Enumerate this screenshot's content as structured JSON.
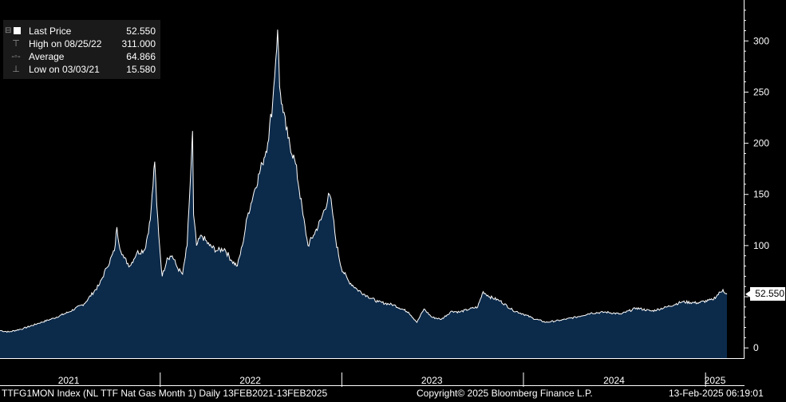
{
  "legend": {
    "last_price_label": "Last Price",
    "last_price_value": "52.550",
    "high_label": "High on 08/25/22",
    "high_value": "311.000",
    "average_label": "Average",
    "average_value": "64.866",
    "low_label": "Low on 03/03/21",
    "low_value": "15.580"
  },
  "last_value_tag": "52.550",
  "footer": {
    "ticker": "TTFG1MON Index (NL TTF Nat Gas Month 1)  Daily 13FEB2021-13FEB2025",
    "copyright": "Copyright© 2025 Bloomberg Finance L.P.",
    "timestamp": "13-Feb-2025 06:19:01"
  },
  "colors": {
    "background": "#000000",
    "area_fill": "#0c2a4a",
    "line": "#ffffff"
  },
  "chart_data": {
    "type": "area",
    "title": "",
    "xlabel": "",
    "ylabel": "",
    "ylim": [
      -10,
      340
    ],
    "xlim": [
      "2021-02-13",
      "2025-02-13"
    ],
    "yticks": [
      0,
      50,
      100,
      150,
      200,
      250,
      300
    ],
    "xticks": [
      {
        "label": "2021",
        "date": "2021-07-01"
      },
      {
        "label": "2022",
        "date": "2022-07-01"
      },
      {
        "label": "2023",
        "date": "2023-07-01"
      },
      {
        "label": "2024",
        "date": "2024-07-01"
      },
      {
        "label": "2025",
        "date": "2025-01-20"
      }
    ],
    "year_separators": [
      "2022-01-01",
      "2023-01-01",
      "2024-01-01",
      "2025-01-01"
    ],
    "grid": false,
    "series": [
      {
        "name": "Last Price",
        "points": [
          [
            "2021-02-13",
            17
          ],
          [
            "2021-03-03",
            15.6
          ],
          [
            "2021-04-01",
            19
          ],
          [
            "2021-05-01",
            24
          ],
          [
            "2021-06-01",
            29
          ],
          [
            "2021-07-01",
            35
          ],
          [
            "2021-08-01",
            43
          ],
          [
            "2021-09-01",
            62
          ],
          [
            "2021-09-15",
            78
          ],
          [
            "2021-10-01",
            95
          ],
          [
            "2021-10-06",
            118
          ],
          [
            "2021-10-10",
            102
          ],
          [
            "2021-10-20",
            88
          ],
          [
            "2021-11-01",
            80
          ],
          [
            "2021-11-15",
            93
          ],
          [
            "2021-12-01",
            96
          ],
          [
            "2021-12-12",
            125
          ],
          [
            "2021-12-21",
            182
          ],
          [
            "2021-12-25",
            140
          ],
          [
            "2021-12-31",
            98
          ],
          [
            "2022-01-05",
            70
          ],
          [
            "2022-01-15",
            88
          ],
          [
            "2022-01-25",
            90
          ],
          [
            "2022-02-05",
            78
          ],
          [
            "2022-02-15",
            72
          ],
          [
            "2022-02-24",
            100
          ],
          [
            "2022-03-04",
            178
          ],
          [
            "2022-03-07",
            212
          ],
          [
            "2022-03-09",
            130
          ],
          [
            "2022-03-15",
            100
          ],
          [
            "2022-03-25",
            110
          ],
          [
            "2022-04-10",
            100
          ],
          [
            "2022-04-25",
            95
          ],
          [
            "2022-05-10",
            97
          ],
          [
            "2022-05-25",
            85
          ],
          [
            "2022-06-05",
            80
          ],
          [
            "2022-06-15",
            100
          ],
          [
            "2022-06-25",
            128
          ],
          [
            "2022-07-10",
            155
          ],
          [
            "2022-07-25",
            180
          ],
          [
            "2022-08-05",
            200
          ],
          [
            "2022-08-15",
            240
          ],
          [
            "2022-08-25",
            311
          ],
          [
            "2022-08-29",
            255
          ],
          [
            "2022-09-05",
            230
          ],
          [
            "2022-09-15",
            205
          ],
          [
            "2022-09-30",
            180
          ],
          [
            "2022-10-15",
            130
          ],
          [
            "2022-10-25",
            100
          ],
          [
            "2022-11-05",
            110
          ],
          [
            "2022-11-20",
            125
          ],
          [
            "2022-12-07",
            150
          ],
          [
            "2022-12-12",
            138
          ],
          [
            "2022-12-20",
            105
          ],
          [
            "2022-12-31",
            78
          ],
          [
            "2023-01-15",
            65
          ],
          [
            "2023-02-01",
            57
          ],
          [
            "2023-02-20",
            51
          ],
          [
            "2023-03-15",
            45
          ],
          [
            "2023-04-15",
            42
          ],
          [
            "2023-05-15",
            35
          ],
          [
            "2023-06-01",
            25
          ],
          [
            "2023-06-15",
            38
          ],
          [
            "2023-07-01",
            30
          ],
          [
            "2023-07-20",
            28
          ],
          [
            "2023-08-10",
            36
          ],
          [
            "2023-08-25",
            35
          ],
          [
            "2023-09-15",
            38
          ],
          [
            "2023-10-01",
            40
          ],
          [
            "2023-10-12",
            55
          ],
          [
            "2023-10-25",
            50
          ],
          [
            "2023-11-15",
            46
          ],
          [
            "2023-12-10",
            37
          ],
          [
            "2024-01-01",
            33
          ],
          [
            "2024-01-20",
            29
          ],
          [
            "2024-02-15",
            25
          ],
          [
            "2024-03-15",
            27
          ],
          [
            "2024-04-15",
            30
          ],
          [
            "2024-05-15",
            34
          ],
          [
            "2024-06-15",
            35
          ],
          [
            "2024-07-15",
            33
          ],
          [
            "2024-08-15",
            39
          ],
          [
            "2024-09-15",
            36
          ],
          [
            "2024-10-15",
            40
          ],
          [
            "2024-11-15",
            45
          ],
          [
            "2024-12-15",
            44
          ],
          [
            "2025-01-15",
            47
          ],
          [
            "2025-02-05",
            57
          ],
          [
            "2025-02-10",
            53
          ],
          [
            "2025-02-13",
            52.55
          ]
        ]
      }
    ]
  }
}
